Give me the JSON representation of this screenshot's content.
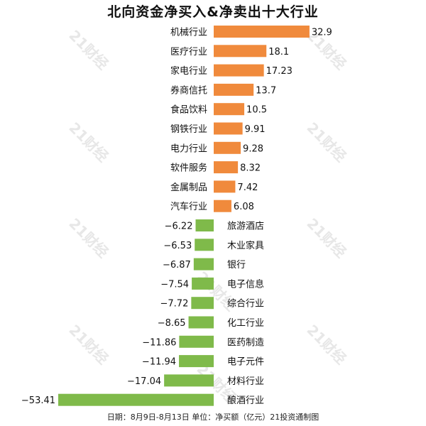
{
  "chart_data": {
    "type": "bar",
    "orientation": "horizontal",
    "title": "北向资金净买入&净卖出十大行业",
    "footer": "日期：8月9日-8月13日 单位：净买额（亿元）21投资通制图",
    "watermark": "21财经",
    "categories": [
      "机械行业",
      "医疗行业",
      "家电行业",
      "券商信托",
      "食品饮料",
      "钢铁行业",
      "电力行业",
      "软件服务",
      "金属制品",
      "汽车行业",
      "旅游酒店",
      "木业家具",
      "银行",
      "电子信息",
      "综合行业",
      "化工行业",
      "医药制造",
      "电子元件",
      "材料行业",
      "酿酒行业"
    ],
    "values": [
      32.9,
      18.1,
      17.23,
      13.7,
      10.5,
      9.91,
      9.28,
      8.32,
      7.42,
      6.08,
      -6.22,
      -6.53,
      -6.87,
      -7.54,
      -7.72,
      -8.65,
      -11.86,
      -11.94,
      -17.04,
      -53.41
    ],
    "value_labels": [
      "32.9",
      "18.1",
      "17.23",
      "13.7",
      "10.5",
      "9.91",
      "9.28",
      "8.32",
      "7.42",
      "6.08",
      "−6.22",
      "−6.53",
      "−6.87",
      "−7.54",
      "−7.72",
      "−8.65",
      "−11.86",
      "−11.94",
      "−17.04",
      "−53.41"
    ],
    "colors": {
      "positive": "#F08A3C",
      "negative": "#7FBA4A"
    },
    "xlim": [
      -53.41,
      32.9
    ],
    "grid": false,
    "legend": "none"
  }
}
